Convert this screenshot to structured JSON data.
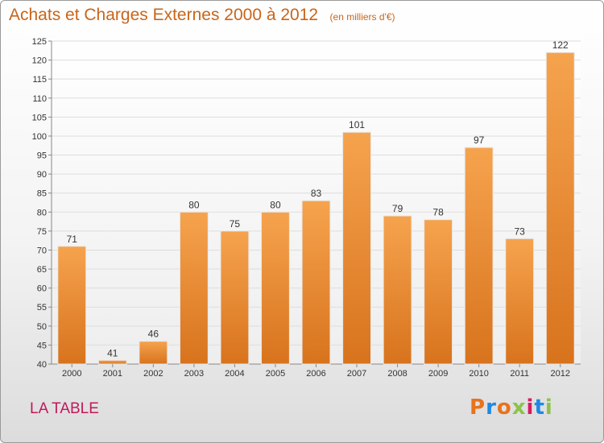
{
  "header": {
    "title": "Achats et Charges Externes 2000 à 2012",
    "unit": "(en milliers d'€)"
  },
  "footer": {
    "commune": "LA TABLE",
    "logo": "Proxiti",
    "logo_colors": [
      "#e8731c",
      "#1e88e5",
      "#e8731c",
      "#8bc34a",
      "#d81b60",
      "#1e88e5",
      "#8bc34a"
    ]
  },
  "chart_data": {
    "type": "bar",
    "title": "Achats et Charges Externes 2000 à 2012",
    "categories": [
      "2000",
      "2001",
      "2002",
      "2003",
      "2004",
      "2005",
      "2006",
      "2007",
      "2008",
      "2009",
      "2010",
      "2011",
      "2012"
    ],
    "values": [
      71,
      41,
      46,
      80,
      75,
      80,
      83,
      101,
      79,
      78,
      97,
      73,
      122
    ],
    "ylim": [
      40,
      125
    ],
    "yticks": [
      40,
      45,
      50,
      55,
      60,
      65,
      70,
      75,
      80,
      85,
      90,
      95,
      100,
      105,
      110,
      115,
      120,
      125
    ],
    "bar_color_top": "#f6a34e",
    "bar_color_bottom": "#d8731d",
    "grid": true
  }
}
